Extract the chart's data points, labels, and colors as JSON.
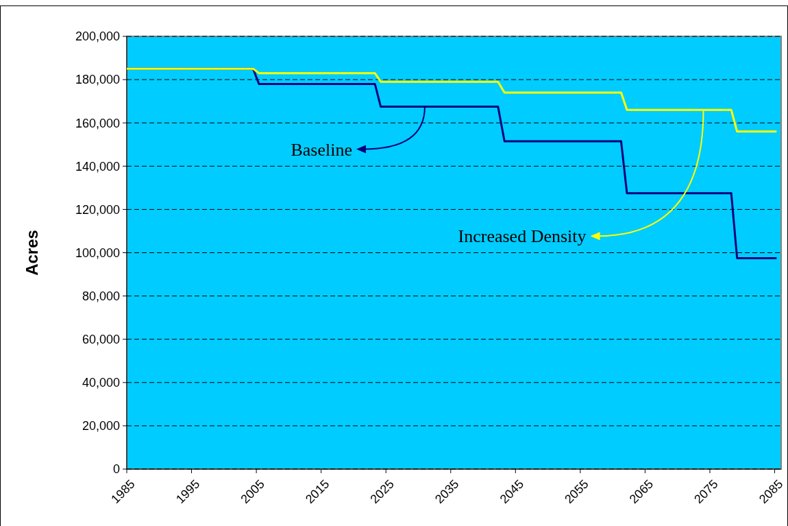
{
  "chart_data": {
    "type": "line",
    "ylabel": "Acres",
    "xlim": [
      1985,
      2086
    ],
    "xticks": [
      1985,
      1995,
      2005,
      2015,
      2025,
      2035,
      2045,
      2055,
      2065,
      2075,
      2085
    ],
    "ylim": [
      0,
      200000
    ],
    "yticks": [
      {
        "value": 0,
        "label": "0"
      },
      {
        "value": 20000,
        "label": "20,000"
      },
      {
        "value": 40000,
        "label": "40,000"
      },
      {
        "value": 60000,
        "label": "60,000"
      },
      {
        "value": 80000,
        "label": "80,000"
      },
      {
        "value": 100000,
        "label": "100,000"
      },
      {
        "value": 120000,
        "label": "120,000"
      },
      {
        "value": 140000,
        "label": "140,000"
      },
      {
        "value": 160000,
        "label": "160,000"
      },
      {
        "value": 180000,
        "label": "180,000"
      },
      {
        "value": 200000,
        "label": "200,000"
      }
    ],
    "grid": "y",
    "marker": "none",
    "line_style": "solid",
    "x": [
      1985,
      2004.5,
      2005.4,
      2023.3,
      2024.2,
      2042.3,
      2043.3,
      2061.3,
      2062.2,
      2078.3,
      2079.2,
      2085.3
    ],
    "series": [
      {
        "color": "#000080",
        "values": [
          185000,
          185000,
          178000,
          178000,
          167500,
          167500,
          151500,
          151500,
          127500,
          127500,
          97500,
          97500
        ]
      },
      {
        "color": "#ffff00",
        "values": [
          185000,
          185000,
          183000,
          183000,
          179000,
          179000,
          174000,
          174000,
          166000,
          166000,
          156000,
          156000
        ]
      }
    ],
    "annotations": [
      {
        "text": "Baseline",
        "x": 2031,
        "y": 167500
      },
      {
        "text": "Increased Density",
        "x": 2074,
        "y": 166000
      }
    ]
  }
}
